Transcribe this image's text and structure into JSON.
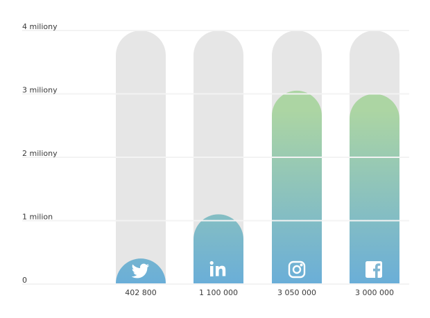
{
  "chart_data": {
    "type": "bar",
    "categories": [
      null,
      null,
      null,
      null
    ],
    "values": [
      402800,
      1100000,
      3050000,
      3000000
    ],
    "value_labels": [
      "402 800",
      "1 100 000",
      "3 050 000",
      "3 000 000"
    ],
    "ylim": [
      0,
      4000000
    ],
    "yticks": [
      0,
      {
        "value": 1000000,
        "label": "1 milion"
      },
      {
        "value": 2000000,
        "label": "2 miliony"
      },
      {
        "value": 3000000,
        "label": "3 miliony"
      },
      {
        "value": 4000000,
        "label": "4 miliony"
      }
    ],
    "grid": true,
    "track_color": "#e6e6e6",
    "gradient": [
      "#acd5a3",
      "#6aaed8"
    ]
  }
}
